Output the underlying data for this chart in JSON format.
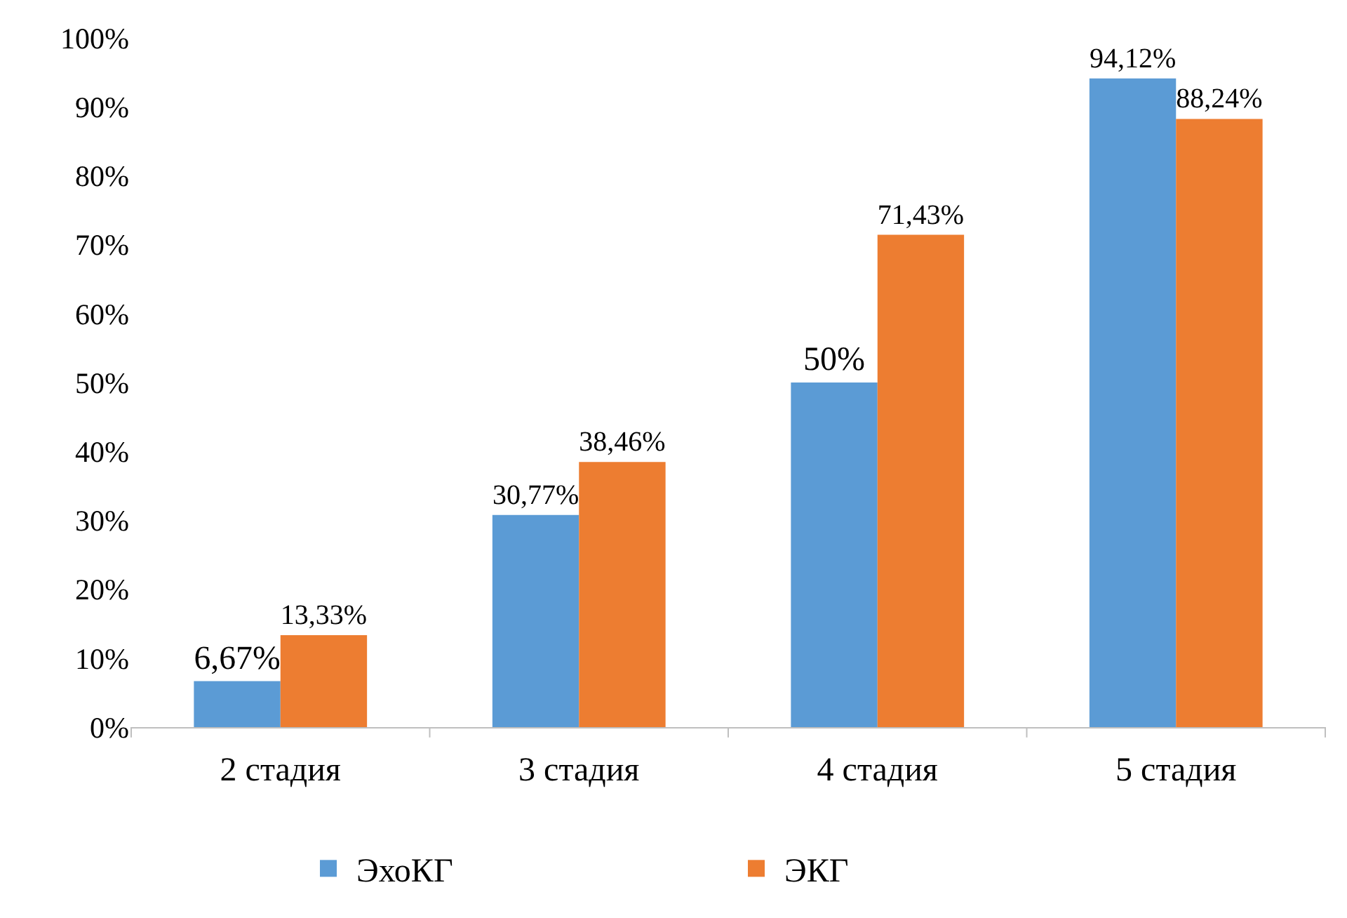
{
  "chart_data": {
    "type": "bar",
    "categories": [
      "2 стадия",
      "3 стадия",
      "4 стадия",
      "5 стадия"
    ],
    "series": [
      {
        "name": "ЭхоКГ",
        "color": "#5b9bd5",
        "values": [
          6.67,
          30.77,
          50,
          94.12
        ],
        "value_labels": [
          "6,67%",
          "30,77%",
          "50%",
          "94,12%"
        ]
      },
      {
        "name": "ЭКГ",
        "color": "#ed7d31",
        "values": [
          13.33,
          38.46,
          71.43,
          88.24
        ],
        "value_labels": [
          "13,33%",
          "38,46%",
          "71,43%",
          "88,24%"
        ]
      }
    ],
    "ylim": [
      0,
      100
    ],
    "yticks": [
      {
        "value": 0,
        "label": "0%"
      },
      {
        "value": 10,
        "label": "10%"
      },
      {
        "value": 20,
        "label": "20%"
      },
      {
        "value": 30,
        "label": "30%"
      },
      {
        "value": 40,
        "label": "40%"
      },
      {
        "value": 50,
        "label": "50%"
      },
      {
        "value": 60,
        "label": "60%"
      },
      {
        "value": 70,
        "label": "70%"
      },
      {
        "value": 80,
        "label": "80%"
      },
      {
        "value": 90,
        "label": "90%"
      },
      {
        "value": 100,
        "label": "100%"
      }
    ],
    "grid": false,
    "legend": "bottom"
  }
}
